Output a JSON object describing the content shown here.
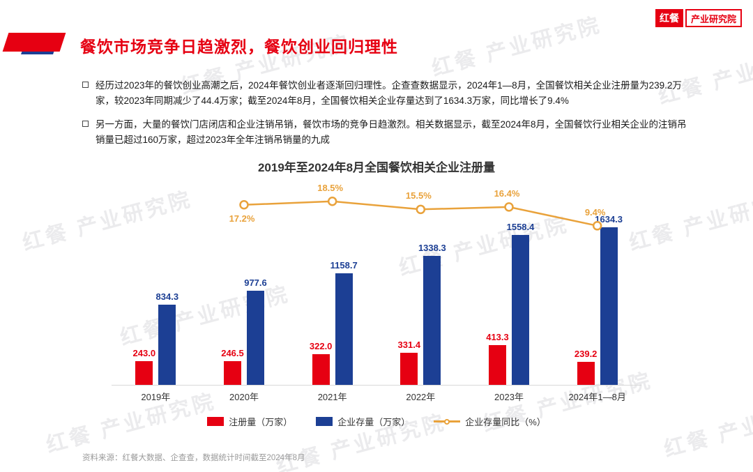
{
  "header": {
    "title": "餐饮市场竞争日趋激烈，餐饮创业回归理性",
    "logo": {
      "primary": "红餐",
      "secondary": "产业研究院"
    }
  },
  "bullets": [
    "经历过2023年的餐饮创业高潮之后，2024年餐饮创业者逐渐回归理性。企查查数据显示，2024年1—8月，全国餐饮相关企业注册量为239.2万家，较2023年同期减少了44.4万家；截至2024年8月，全国餐饮相关企业存量达到了1634.3万家，同比增长了9.4%",
    "另一方面，大量的餐饮门店闭店和企业注销吊销，餐饮市场的竞争日趋激烈。相关数据显示，截至2024年8月，全国餐饮行业相关企业的注销吊销量已超过160万家，超过2023年全年注销吊销量的九成"
  ],
  "chart_data": {
    "type": "bar",
    "title": "2019年至2024年8月全国餐饮相关企业注册量",
    "categories": [
      "2019年",
      "2020年",
      "2021年",
      "2022年",
      "2023年",
      "2024年1—8月"
    ],
    "series": [
      {
        "name": "注册量（万家）",
        "type": "bar",
        "color": "#e60012",
        "values": [
          243.0,
          246.5,
          322.0,
          331.4,
          413.3,
          239.2
        ]
      },
      {
        "name": "企业存量（万家）",
        "type": "bar",
        "color": "#1c3f94",
        "values": [
          834.3,
          977.6,
          1158.7,
          1338.3,
          1558.4,
          1634.3
        ]
      },
      {
        "name": "企业存量同比（%）",
        "type": "line",
        "color": "#e9a23b",
        "values": [
          null,
          17.2,
          18.5,
          15.5,
          16.4,
          9.4
        ]
      }
    ],
    "bar_axis_max": 2100,
    "legend_position": "bottom",
    "grid": false,
    "xlabel": "",
    "ylabel": ""
  },
  "footer": {
    "source": "资料来源：红餐大数据、企查查，数据统计时间截至2024年8月"
  },
  "watermark": {
    "text": "红餐 产业研究院"
  },
  "colors": {
    "accent_red": "#e60012",
    "bar_blue": "#1c3f94",
    "line_gold": "#e9a23b"
  }
}
